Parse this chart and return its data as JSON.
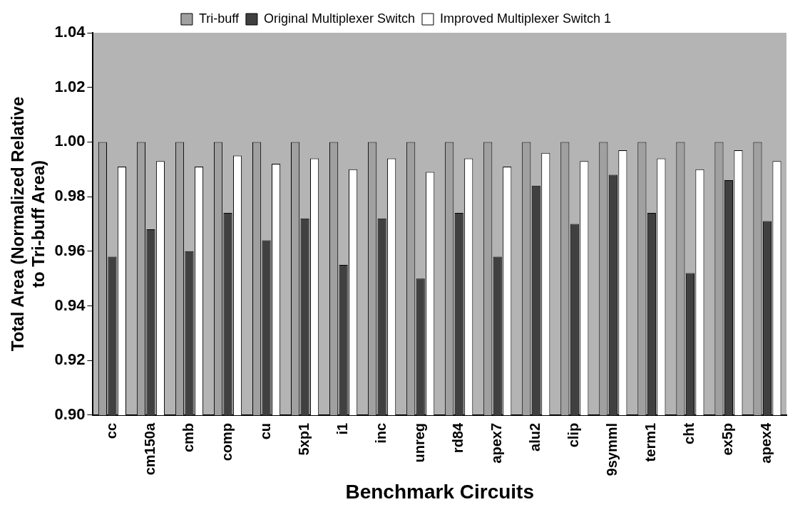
{
  "chart_data": {
    "type": "bar",
    "xlabel": "Benchmark Circuits",
    "ylabel": "Total Area (Normalized Relative\nto Tri-buff Area)",
    "categories": [
      "cc",
      "cm150a",
      "cmb",
      "comp",
      "cu",
      "5xp1",
      "i1",
      "inc",
      "unreg",
      "rd84",
      "apex7",
      "alu2",
      "clip",
      "9symml",
      "term1",
      "cht",
      "ex5p",
      "apex4"
    ],
    "series": [
      {
        "name": "Tri-buff",
        "color": "#a0a0a0",
        "values": [
          1,
          1,
          1,
          1,
          1,
          1,
          1,
          1,
          1,
          1,
          1,
          1,
          1,
          1,
          1,
          1,
          1,
          1
        ]
      },
      {
        "name": "Original Multiplexer Switch",
        "color": "#404040",
        "values": [
          0.958,
          0.968,
          0.96,
          0.974,
          0.964,
          0.972,
          0.955,
          0.972,
          0.95,
          0.974,
          0.958,
          0.984,
          0.97,
          0.988,
          0.974,
          0.952,
          0.986,
          0.971
        ]
      },
      {
        "name": "Improved Multiplexer Switch 1",
        "color": "#ffffff",
        "values": [
          0.991,
          0.993,
          0.991,
          0.995,
          0.992,
          0.994,
          0.99,
          0.994,
          0.989,
          0.994,
          0.991,
          0.996,
          0.993,
          0.997,
          0.994,
          0.99,
          0.997,
          0.993
        ]
      }
    ],
    "ylim": [
      0.9,
      1.04
    ],
    "yticks": [
      {
        "value": 0.9,
        "label": "0.90"
      },
      {
        "value": 0.92,
        "label": "0.92"
      },
      {
        "value": 0.94,
        "label": "0.94"
      },
      {
        "value": 0.96,
        "label": "0.96"
      },
      {
        "value": 0.98,
        "label": "0.98"
      },
      {
        "value": 1.0,
        "label": "1.00"
      },
      {
        "value": 1.02,
        "label": "1.02"
      },
      {
        "value": 1.04,
        "label": "1.04"
      }
    ],
    "grid": false,
    "legend": "top"
  }
}
